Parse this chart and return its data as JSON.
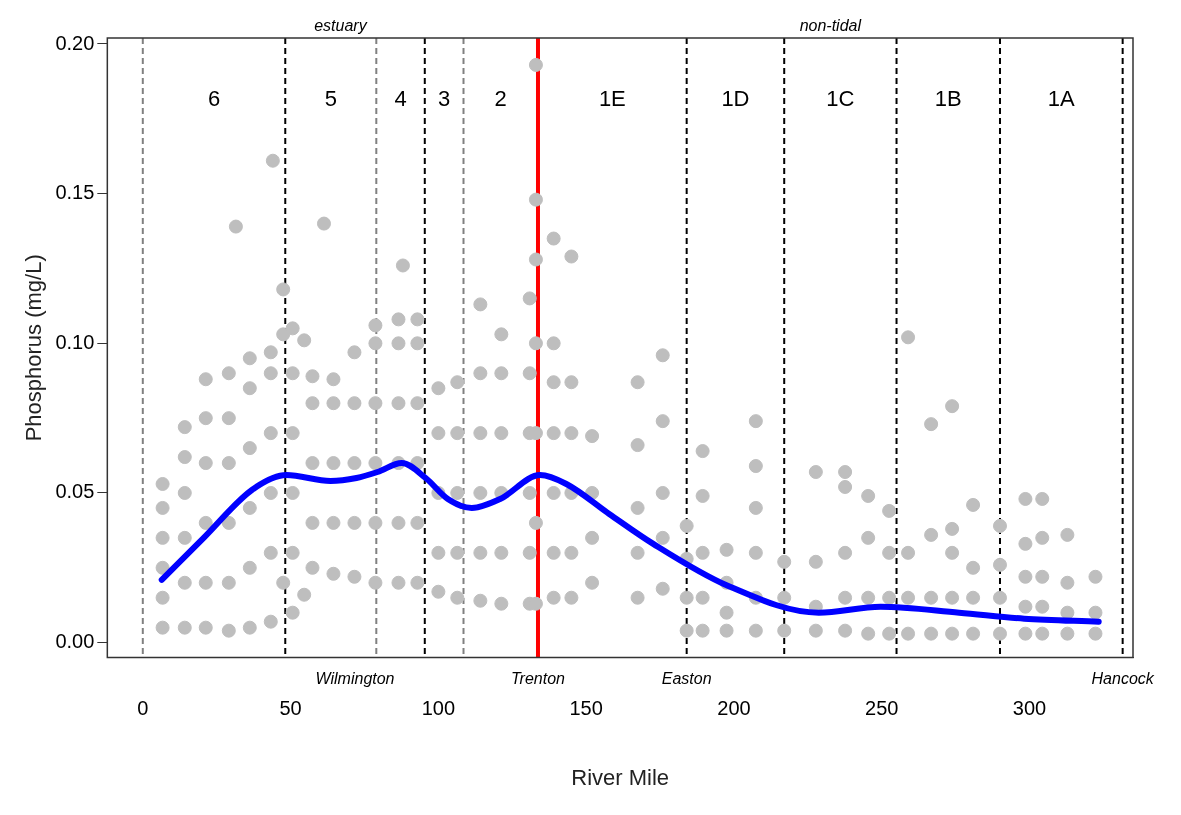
{
  "chart_data": {
    "type": "scatter",
    "xlabel": "River Mile",
    "ylabel": "Phosphorus (mg/L)",
    "xlim": [
      -12,
      335
    ],
    "ylim": [
      -0.005,
      0.202
    ],
    "xticks": [
      0,
      50,
      100,
      150,
      200,
      250,
      300
    ],
    "yticks": [
      {
        "value": 0,
        "label": "0.00"
      },
      {
        "value": 0.05,
        "label": "0.05"
      },
      {
        "value": 0.1,
        "label": "0.10"
      },
      {
        "value": 0.15,
        "label": "0.15"
      },
      {
        "value": 0.2,
        "label": "0.20"
      }
    ],
    "grid": false,
    "legend": false,
    "marker": "circle",
    "series": [
      {
        "color": "#bebebe",
        "x": [
          6.7,
          6.7,
          6.7,
          6.7,
          6.7,
          6.7,
          14.2,
          14.2,
          14.2,
          14.2,
          14.2,
          14.2,
          21.3,
          21.3,
          21.3,
          21.3,
          21.3,
          21.3,
          29.1,
          29.1,
          29.1,
          29.1,
          29.1,
          29.1,
          31.5,
          36.2,
          36.2,
          36.2,
          36.2,
          36.2,
          36.2,
          43.3,
          43.3,
          43.3,
          43.3,
          43.3,
          43.3,
          44,
          47.5,
          47.5,
          47.5,
          50.7,
          50.7,
          50.7,
          50.7,
          50.7,
          50.7,
          54.6,
          54.6,
          57.4,
          57.4,
          57.4,
          57.4,
          57.4,
          61.3,
          64.5,
          64.5,
          64.5,
          64.5,
          64.5,
          71.6,
          71.6,
          71.6,
          71.6,
          71.6,
          78.7,
          78.7,
          78.7,
          78.7,
          78.7,
          78.7,
          86.5,
          86.5,
          86.5,
          86.5,
          86.5,
          86.5,
          88,
          92.9,
          92.9,
          92.9,
          92.9,
          92.9,
          92.9,
          100,
          100,
          100,
          100,
          100,
          106.4,
          106.4,
          106.4,
          106.4,
          106.4,
          114.2,
          114.2,
          114.2,
          114.2,
          114.2,
          114.2,
          121.3,
          121.3,
          121.3,
          121.3,
          121.3,
          121.3,
          130.9,
          130.9,
          130.9,
          130.9,
          130.9,
          130.9,
          133,
          133,
          133,
          133,
          133,
          133,
          133,
          139,
          139,
          139,
          139,
          139,
          139,
          139,
          145,
          145,
          145,
          145,
          145,
          145,
          152,
          152,
          152,
          152,
          167.4,
          167.4,
          167.4,
          167.4,
          167.4,
          175.9,
          175.9,
          175.9,
          175.9,
          175.9,
          184,
          184,
          184,
          184,
          189.4,
          189.4,
          189.4,
          189.4,
          189.4,
          197.5,
          197.5,
          197.5,
          197.5,
          207.4,
          207.4,
          207.4,
          207.4,
          207.4,
          207.4,
          217,
          217,
          217,
          227.7,
          227.7,
          227.7,
          227.7,
          237.6,
          237.6,
          237.6,
          237.6,
          237.6,
          245.4,
          245.4,
          245.4,
          245.4,
          252.5,
          252.5,
          252.5,
          252.5,
          258.9,
          258.9,
          258.9,
          258.9,
          266.7,
          266.7,
          266.7,
          266.7,
          273.8,
          273.8,
          273.8,
          273.8,
          273.8,
          280.9,
          280.9,
          280.9,
          280.9,
          290,
          290,
          290,
          290,
          298.6,
          298.6,
          298.6,
          298.6,
          298.6,
          304.3,
          304.3,
          304.3,
          304.3,
          304.3,
          312.8,
          312.8,
          312.8,
          312.8,
          322.3,
          322.3,
          322.3
        ],
        "values": [
          0.005,
          0.015,
          0.025,
          0.035,
          0.045,
          0.053,
          0.005,
          0.02,
          0.035,
          0.05,
          0.062,
          0.072,
          0.005,
          0.02,
          0.04,
          0.06,
          0.075,
          0.088,
          0.004,
          0.02,
          0.04,
          0.06,
          0.075,
          0.09,
          0.139,
          0.005,
          0.025,
          0.045,
          0.065,
          0.085,
          0.095,
          0.007,
          0.03,
          0.05,
          0.07,
          0.09,
          0.097,
          0.161,
          0.118,
          0.103,
          0.02,
          0.01,
          0.03,
          0.05,
          0.07,
          0.09,
          0.105,
          0.101,
          0.016,
          0.025,
          0.04,
          0.06,
          0.08,
          0.089,
          0.14,
          0.023,
          0.04,
          0.06,
          0.08,
          0.088,
          0.022,
          0.04,
          0.06,
          0.08,
          0.097,
          0.02,
          0.04,
          0.06,
          0.08,
          0.1,
          0.106,
          0.02,
          0.04,
          0.06,
          0.08,
          0.1,
          0.108,
          0.126,
          0.02,
          0.04,
          0.06,
          0.08,
          0.1,
          0.108,
          0.017,
          0.03,
          0.05,
          0.07,
          0.085,
          0.015,
          0.03,
          0.05,
          0.07,
          0.087,
          0.014,
          0.03,
          0.05,
          0.07,
          0.09,
          0.113,
          0.013,
          0.03,
          0.05,
          0.07,
          0.09,
          0.103,
          0.013,
          0.03,
          0.05,
          0.07,
          0.09,
          0.115,
          0.013,
          0.04,
          0.07,
          0.1,
          0.128,
          0.148,
          0.193,
          0.015,
          0.03,
          0.05,
          0.07,
          0.087,
          0.1,
          0.135,
          0.015,
          0.03,
          0.05,
          0.07,
          0.087,
          0.129,
          0.02,
          0.035,
          0.05,
          0.069,
          0.015,
          0.03,
          0.045,
          0.066,
          0.087,
          0.018,
          0.035,
          0.05,
          0.074,
          0.096,
          0.004,
          0.015,
          0.028,
          0.039,
          0.004,
          0.015,
          0.03,
          0.049,
          0.064,
          0.004,
          0.01,
          0.02,
          0.031,
          0.004,
          0.015,
          0.03,
          0.045,
          0.059,
          0.074,
          0.004,
          0.015,
          0.027,
          0.004,
          0.012,
          0.027,
          0.057,
          0.004,
          0.015,
          0.03,
          0.052,
          0.057,
          0.003,
          0.015,
          0.035,
          0.049,
          0.003,
          0.015,
          0.03,
          0.044,
          0.003,
          0.015,
          0.03,
          0.102,
          0.003,
          0.015,
          0.036,
          0.073,
          0.003,
          0.015,
          0.03,
          0.038,
          0.079,
          0.003,
          0.015,
          0.025,
          0.046,
          0.003,
          0.015,
          0.026,
          0.039,
          0.003,
          0.012,
          0.022,
          0.033,
          0.048,
          0.003,
          0.012,
          0.022,
          0.035,
          0.048,
          0.003,
          0.01,
          0.02,
          0.036,
          0.003,
          0.01,
          0.022
        ]
      },
      {
        "type": "line",
        "color": "#0000ff",
        "marker": "none",
        "line_style": "solid",
        "x": [
          6.4,
          20.6,
          36.9,
          48.6,
          63.5,
          72.3,
          79.4,
          87.6,
          95.7,
          103.2,
          111.3,
          120.9,
          134.4,
          143.3,
          157.8,
          172.7,
          197.9,
          228.7,
          249.6,
          276.2,
          298.2,
          323.4
        ],
        "values": [
          0.021,
          0.035,
          0.051,
          0.056,
          0.054,
          0.055,
          0.057,
          0.06,
          0.055,
          0.048,
          0.045,
          0.048,
          0.056,
          0.053,
          0.043,
          0.033,
          0.019,
          0.01,
          0.012,
          0.01,
          0.008,
          0.007
        ]
      }
    ],
    "ref_lines": [
      {
        "axis": "x",
        "value": 0,
        "color": "#808080",
        "line_style": "dashed"
      },
      {
        "axis": "x",
        "value": 48.2,
        "color": "#000000",
        "line_style": "dashed"
      },
      {
        "axis": "x",
        "value": 79,
        "color": "#808080",
        "line_style": "dashed"
      },
      {
        "axis": "x",
        "value": 95.4,
        "color": "#000000",
        "line_style": "dashed"
      },
      {
        "axis": "x",
        "value": 108.5,
        "color": "#808080",
        "line_style": "dashed"
      },
      {
        "axis": "x",
        "value": 133.7,
        "color": "#ff0000",
        "line_style": "solid",
        "label": "Trenton"
      },
      {
        "axis": "x",
        "value": 184,
        "color": "#000000",
        "line_style": "dashed",
        "label": "Easton"
      },
      {
        "axis": "x",
        "value": 217,
        "color": "#000000",
        "line_style": "dashed"
      },
      {
        "axis": "x",
        "value": 255,
        "color": "#000000",
        "line_style": "dashed"
      },
      {
        "axis": "x",
        "value": 290,
        "color": "#000000",
        "line_style": "dashed"
      },
      {
        "axis": "x",
        "value": 331.5,
        "color": "#000000",
        "line_style": "dashed",
        "label": "Hancock"
      }
    ],
    "annotations": [
      "6",
      "5",
      "4",
      "3",
      "2",
      "1E",
      "1D",
      "1C",
      "1B",
      "1A",
      "estuary",
      "non-tidal",
      "Wilmington"
    ]
  }
}
